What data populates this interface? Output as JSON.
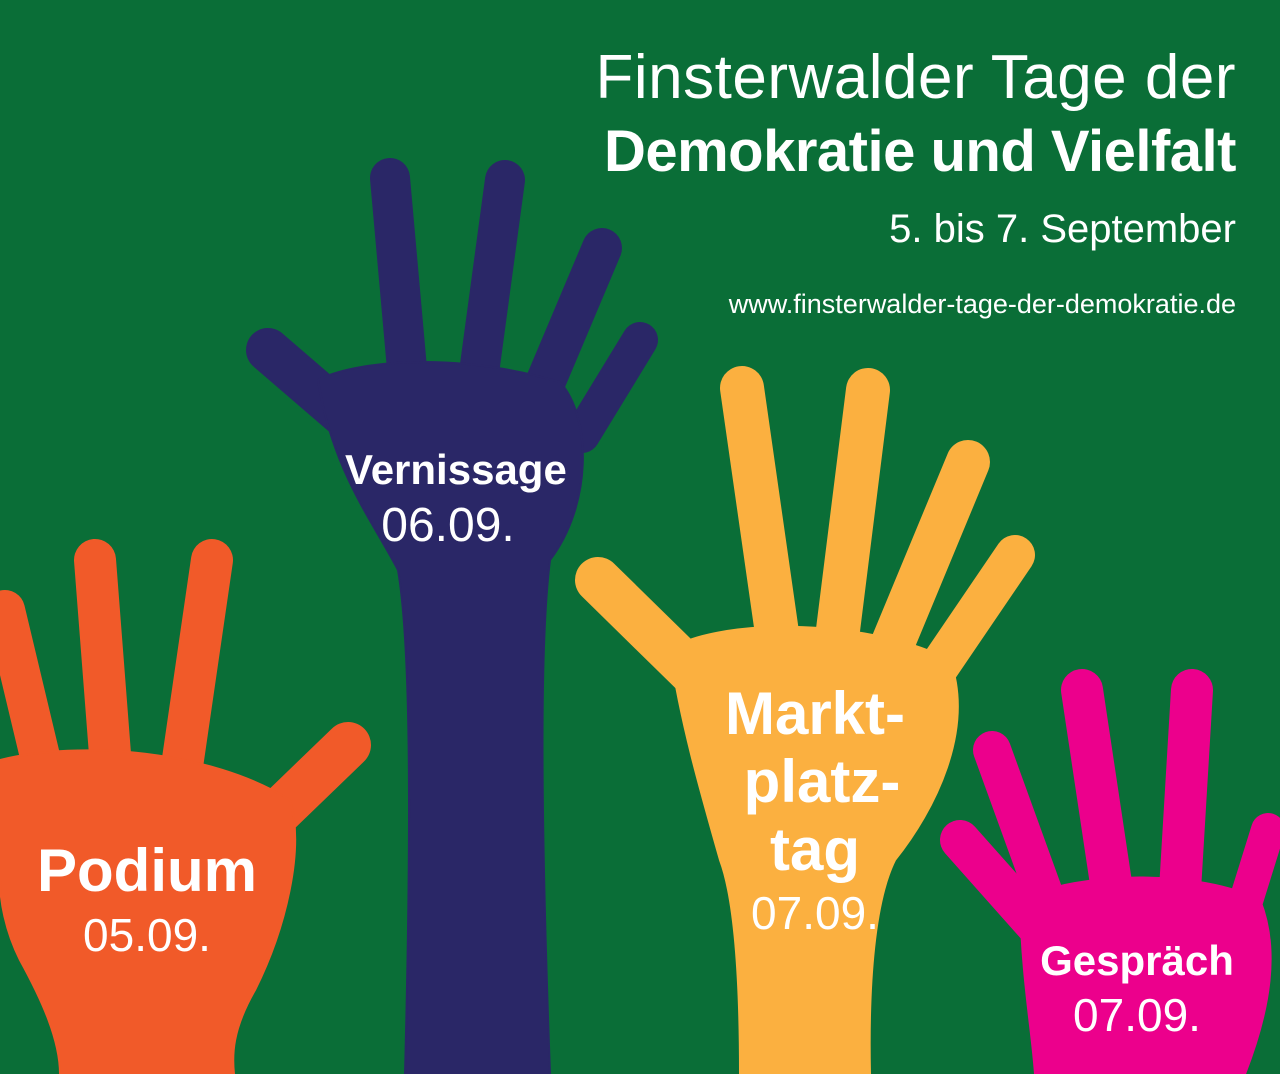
{
  "header": {
    "title_line1": "Finsterwalder Tage der",
    "title_line2": "Demokratie und Vielfalt",
    "dates": "5. bis 7. September",
    "url": "www.finsterwalder-tage-der-demokratie.de"
  },
  "events": {
    "podium": {
      "name": "Podium",
      "date": "05.09."
    },
    "vernissage": {
      "name": "Vernissage",
      "date": "06.09."
    },
    "marktplatztag": {
      "name_line1": "Markt-",
      "name_line2": "platz-",
      "name_line3": "tag",
      "date": "07.09."
    },
    "gespraech": {
      "name": "Gespräch",
      "date": "07.09."
    }
  },
  "colors": {
    "background": "#0a6e37",
    "podium_hand": "#f15a29",
    "vernissage_hand": "#2a2767",
    "marktplatztag_hand": "#fbb040",
    "gespraech_hand": "#ec008c",
    "text": "#ffffff"
  }
}
